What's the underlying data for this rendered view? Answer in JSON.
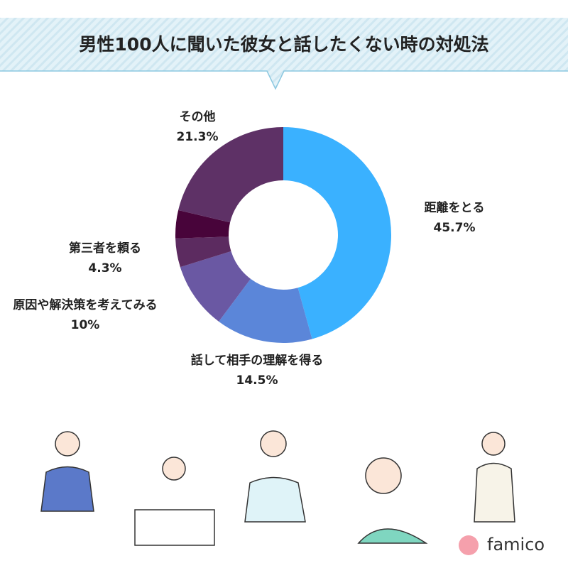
{
  "chart_data": {
    "type": "donut",
    "title": "男性100人に聞いた彼女と話したくない時の対処法",
    "categories": [
      "距離をとる",
      "話して相手の理解を得る",
      "原因や解決策を考えてみる",
      "第三者を頼る",
      null,
      "その他"
    ],
    "values": [
      45.7,
      14.5,
      10,
      4.3,
      4.2,
      21.3
    ],
    "value_labels": [
      "45.7%",
      "14.5%",
      "10%",
      "4.3%",
      null,
      "21.3%"
    ],
    "colors": [
      "#3ab1ff",
      "#5b86d9",
      "#6a58a3",
      "#5c2b60",
      "#48043a",
      "#5e3166"
    ]
  },
  "logo": "famico"
}
